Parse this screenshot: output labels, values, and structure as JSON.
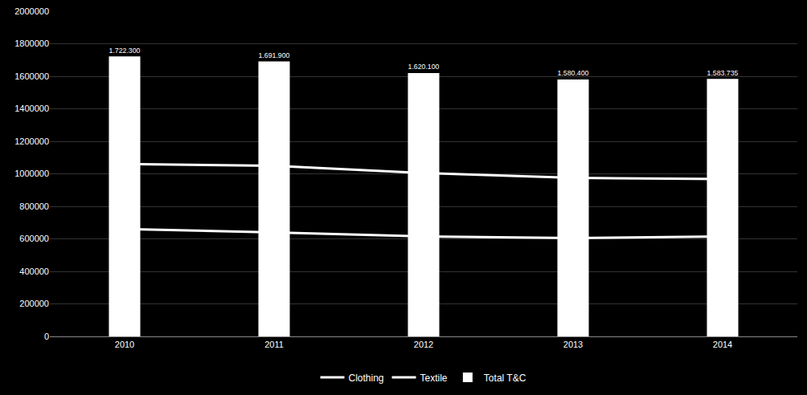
{
  "chart_data": {
    "type": "bar",
    "categories": [
      "2010",
      "2011",
      "2012",
      "2013",
      "2014"
    ],
    "series": [
      {
        "name": "Clothing",
        "type": "line",
        "color": "#ffffff",
        "values": [
          1060000,
          1050000,
          1005000,
          975000,
          968000
        ]
      },
      {
        "name": "Textile",
        "type": "line",
        "color": "#ffffff",
        "values": [
          660000,
          640000,
          615000,
          605000,
          615000
        ]
      },
      {
        "name": "Total T&C",
        "type": "bar",
        "color": "#ffffff",
        "values": [
          1722300,
          1691900,
          1620100,
          1580400,
          1583735
        ],
        "value_labels": [
          "1.722.300",
          "1.691.900",
          "1.620.100",
          "1.580.400",
          "1.583.735"
        ]
      }
    ],
    "ylim": [
      0,
      2000000
    ],
    "yticks": [
      0,
      200000,
      400000,
      600000,
      800000,
      1000000,
      1200000,
      1400000,
      1600000,
      1800000,
      2000000
    ],
    "grid": true,
    "data_labels": true,
    "legend": "bottom"
  }
}
